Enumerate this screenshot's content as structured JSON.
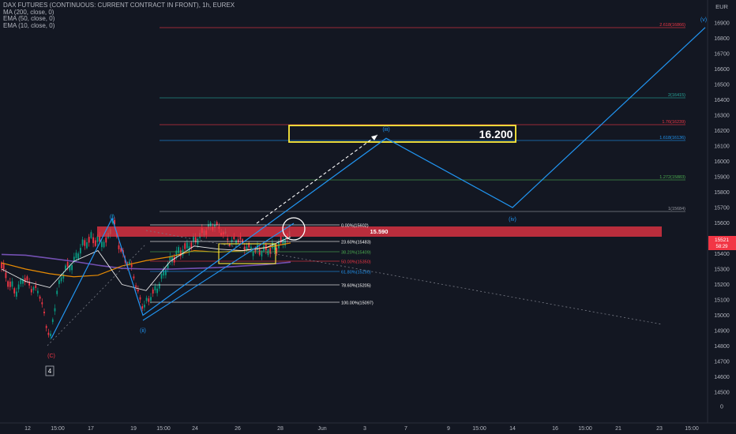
{
  "header": {
    "symbol_title": "DAX FUTURES (CONTINUOUS: CURRENT CONTRACT IN FRONT), 1h, EUREX",
    "indicators": [
      "MA (200, close, 0)",
      "EMA (50, close, 0)",
      "EMA (10, close, 0)"
    ],
    "currency": "EUR"
  },
  "price_scale": {
    "labels": [
      "16900",
      "16800",
      "16700",
      "16600",
      "16500",
      "16400",
      "16300",
      "16200",
      "16100",
      "16000",
      "15900",
      "15800",
      "15700",
      "15600",
      "15500",
      "15400",
      "15300",
      "15200",
      "15100",
      "15000",
      "14900",
      "14800",
      "14700",
      "14600",
      "14500",
      "0"
    ],
    "current_price": "15521",
    "countdown": "58:29",
    "current_price_color": "#f23645"
  },
  "time_axis": {
    "labels": [
      "12",
      "15:00",
      "17",
      "19",
      "15:00",
      "24",
      "26",
      "28",
      "Jun",
      "3",
      "7",
      "9",
      "15:00",
      "14",
      "16",
      "15:00",
      "21",
      "23",
      "15:00"
    ]
  },
  "colors": {
    "background": "#131722",
    "up": "#089981",
    "down": "#f23645",
    "wave_line": "#2196f3",
    "ma200": "#7e57c2",
    "ema50": "#ff9800",
    "ema10": "#ffffff",
    "resistance_band": "#f23645",
    "target_box": "#ffeb3b"
  },
  "fib_retracement": [
    {
      "label": "0.00%(15602)",
      "color": "#ffffff"
    },
    {
      "label": "23.60%(15483)",
      "color": "#ffffff"
    },
    {
      "label": "38.20%(15409)",
      "color": "#4caf50"
    },
    {
      "label": "50.00%(15350)",
      "color": "#f23645"
    },
    {
      "label": "61.80%(15290)",
      "color": "#2196f3"
    },
    {
      "label": "78.60%(15205)",
      "color": "#ffffff"
    },
    {
      "label": "100.00%(15097)",
      "color": "#ffffff"
    }
  ],
  "fib_extension": [
    {
      "label": "2.618(16866)",
      "color": "#f23645"
    },
    {
      "label": "2(16415)",
      "color": "#26a69a"
    },
    {
      "label": "1.76(16239)",
      "color": "#f23645"
    },
    {
      "label": "1.618(16136)",
      "color": "#2196f3"
    },
    {
      "label": "1.272(15883)",
      "color": "#4caf50"
    },
    {
      "label": "1(15684)",
      "color": "#9598a1"
    }
  ],
  "annotations": {
    "resistance_label": "15.590",
    "target_label": "16.200",
    "wave_labels": [
      "(i)",
      "(ii)",
      "(iii)",
      "(iv)",
      "(v)"
    ],
    "corrective_label": "(C)",
    "degree_box_label": "4"
  },
  "chart_data": {
    "type": "line",
    "title": "DAX FUTURES (CONTINUOUS: CURRENT CONTRACT IN FRONT), 1h, EUREX",
    "xlabel": "",
    "ylabel": "",
    "ylim": [
      14430,
      16990
    ],
    "series": [
      {
        "name": "MA (200, close, 0)",
        "values": [
          15395,
          15390,
          15370,
          15350,
          15325,
          15305,
          15300,
          15300,
          15305,
          15310,
          15320,
          15330,
          15345
        ]
      },
      {
        "name": "EMA (50, close, 0)",
        "values": [
          15340,
          15300,
          15270,
          15250,
          15260,
          15320,
          15355,
          15380,
          15420,
          15410,
          15420,
          15440,
          15470
        ]
      },
      {
        "name": "EMA (10, close, 0)",
        "values": [
          15300,
          15220,
          15180,
          15350,
          15420,
          15200,
          15160,
          15350,
          15450,
          15430,
          15420,
          15440,
          15510
        ]
      },
      {
        "name": "Elliott wave projection",
        "x_labels": [
          "(C)",
          "(i)",
          "(ii)",
          "(iii)",
          "(iv)",
          "(v)"
        ],
        "values": [
          14850,
          15630,
          15000,
          16150,
          15700,
          16870
        ]
      }
    ],
    "fib_levels": [
      15602,
      15483,
      15409,
      15350,
      15290,
      15205,
      15097,
      15684,
      15883,
      16136,
      16239,
      16415,
      16866
    ],
    "current_price": 15521,
    "resistance": 15590,
    "target": 16200
  }
}
